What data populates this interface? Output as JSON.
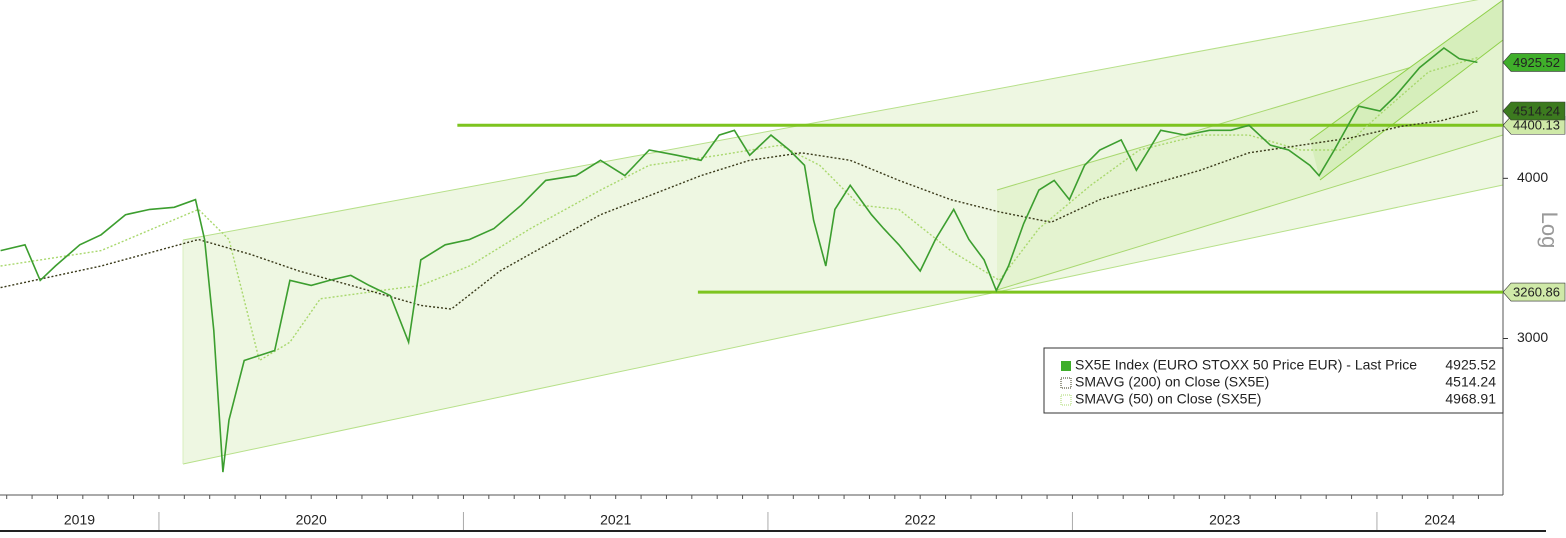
{
  "chart_data": {
    "type": "line",
    "log_scale": true,
    "y_axis_label": "Log",
    "xlim": [
      2019.478,
      2024.414
    ],
    "ylim": [
      2265,
      5510
    ],
    "yticks": [
      3000,
      4000
    ],
    "xticks": [
      {
        "value": 2019,
        "label": "2019"
      },
      {
        "value": 2020,
        "label": "2020"
      },
      {
        "value": 2021,
        "label": "2021"
      },
      {
        "value": 2022,
        "label": "2022"
      },
      {
        "value": 2023,
        "label": "2023"
      },
      {
        "value": 2024,
        "label": "2024"
      }
    ],
    "levels": [
      {
        "value": 4400.13,
        "start": 2020.98
      },
      {
        "value": 3260.86,
        "start": 2021.77
      }
    ],
    "level_color": "#7dc41f",
    "series": [
      {
        "name": "SX5E Index (EURO STOXX 50 Price EUR) - Last Price",
        "last": 4925.52,
        "color": "#3c9e2f",
        "tag_color": "#3fae2a",
        "dash": "",
        "x": [
          2019.48,
          2019.56,
          2019.61,
          2019.66,
          2019.74,
          2019.81,
          2019.89,
          2019.97,
          2020.05,
          2020.12,
          2020.15,
          2020.18,
          2020.21,
          2020.23,
          2020.28,
          2020.33,
          2020.38,
          2020.43,
          2020.5,
          2020.56,
          2020.63,
          2020.69,
          2020.76,
          2020.82,
          2020.86,
          2020.94,
          2021.02,
          2021.1,
          2021.19,
          2021.27,
          2021.37,
          2021.45,
          2021.53,
          2021.61,
          2021.7,
          2021.78,
          2021.84,
          2021.89,
          2021.94,
          2022.01,
          2022.07,
          2022.12,
          2022.15,
          2022.19,
          2022.22,
          2022.27,
          2022.34,
          2022.38,
          2022.43,
          2022.5,
          2022.55,
          2022.61,
          2022.66,
          2022.71,
          2022.75,
          2022.79,
          2022.84,
          2022.89,
          2022.94,
          2022.99,
          2023.04,
          2023.09,
          2023.16,
          2023.21,
          2023.29,
          2023.37,
          2023.45,
          2023.52,
          2023.58,
          2023.65,
          2023.71,
          2023.78,
          2023.81,
          2023.86,
          2023.94,
          2024.01,
          2024.06,
          2024.14,
          2024.22,
          2024.27,
          2024.33
        ],
        "values": [
          3513,
          3550,
          3330,
          3417,
          3550,
          3614,
          3747,
          3783,
          3797,
          3850,
          3584,
          3043,
          2360,
          2592,
          2884,
          2910,
          2936,
          3330,
          3300,
          3330,
          3360,
          3300,
          3240,
          2980,
          3455,
          3550,
          3584,
          3655,
          3812,
          3985,
          4020,
          4132,
          4020,
          4209,
          4170,
          4132,
          4323,
          4360,
          4170,
          4323,
          4209,
          4095,
          3710,
          3417,
          3783,
          3950,
          3747,
          3655,
          3550,
          3387,
          3584,
          3783,
          3584,
          3455,
          3270,
          3417,
          3688,
          3916,
          3985,
          3850,
          4095,
          4209,
          4286,
          4059,
          4360,
          4323,
          4360,
          4360,
          4400,
          4245,
          4209,
          4095,
          4020,
          4209,
          4553,
          4514,
          4636,
          4880,
          5055,
          4960,
          4925.52
        ]
      },
      {
        "name": "SMAVG (200)  on Close (SX5E)",
        "last": 4514.24,
        "color": "#3a3a1a",
        "tag_color": "#3c7a1f",
        "dash": "2,2",
        "x": [
          2019.48,
          2019.81,
          2020.13,
          2020.3,
          2020.46,
          2020.63,
          2020.86,
          2020.96,
          2021.12,
          2021.45,
          2021.78,
          2021.94,
          2022.11,
          2022.27,
          2022.43,
          2022.6,
          2022.76,
          2022.93,
          2023.09,
          2023.25,
          2023.42,
          2023.58,
          2023.75,
          2023.91,
          2024.08,
          2024.21,
          2024.33
        ],
        "values": [
          3287,
          3417,
          3584,
          3490,
          3387,
          3300,
          3184,
          3163,
          3387,
          3747,
          4020,
          4132,
          4188,
          4132,
          3985,
          3850,
          3766,
          3696,
          3850,
          3950,
          4059,
          4188,
          4245,
          4300,
          4392,
          4435,
          4514.24
        ]
      },
      {
        "name": "SMAVG (50)  on Close (SX5E)",
        "last": 4968.91,
        "color": "#a9d86e",
        "tag_color": "#cfe9a8",
        "dash": "2,2",
        "x": [
          2019.48,
          2019.81,
          2020.13,
          2020.23,
          2020.33,
          2020.43,
          2020.53,
          2020.73,
          2020.86,
          2021.02,
          2021.22,
          2021.45,
          2021.61,
          2021.84,
          2022.04,
          2022.17,
          2022.3,
          2022.43,
          2022.6,
          2022.76,
          2022.89,
          2023.06,
          2023.22,
          2023.42,
          2023.58,
          2023.75,
          2023.88,
          2024.01,
          2024.17,
          2024.33
        ],
        "values": [
          3417,
          3513,
          3783,
          3584,
          2884,
          2980,
          3222,
          3270,
          3300,
          3417,
          3655,
          3916,
          4095,
          4170,
          4245,
          4095,
          3812,
          3783,
          3513,
          3330,
          3655,
          3950,
          4209,
          4323,
          4323,
          4209,
          4209,
          4488,
          4843,
          4968.91
        ]
      }
    ]
  }
}
